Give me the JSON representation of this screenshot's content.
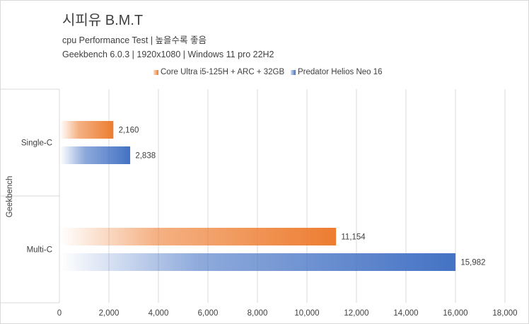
{
  "header": {
    "title": "시피유 B.M.T",
    "subtitle_1": "cpu Performance Test | 높을수록 좋음",
    "subtitle_2": "Geekbench 6.0.3 | 1920x1080 | Windows 11 pro 22H2"
  },
  "chart_data": {
    "type": "bar",
    "orientation": "horizontal",
    "ylabel": "Geekbench",
    "categories": [
      "Single-C",
      "Multi-C"
    ],
    "series": [
      {
        "name": "Core Ultra i5-125H + ARC + 32GB",
        "color": "#ed7d31",
        "values": [
          2160,
          11154
        ],
        "labels": [
          "2,160",
          "11,154"
        ]
      },
      {
        "name": "Predator Helios Neo 16",
        "color": "#4472c4",
        "values": [
          2838,
          15982
        ],
        "labels": [
          "2,838",
          "15,982"
        ]
      }
    ],
    "xlim": [
      0,
      18000
    ],
    "xticks": [
      0,
      2000,
      4000,
      6000,
      8000,
      10000,
      12000,
      14000,
      16000,
      18000
    ],
    "xtick_labels": [
      "0",
      "2,000",
      "4,000",
      "6,000",
      "8,000",
      "10,000",
      "12,000",
      "14,000",
      "16,000",
      "18,000"
    ],
    "grid": "vertical",
    "legend_position": "top-right"
  }
}
